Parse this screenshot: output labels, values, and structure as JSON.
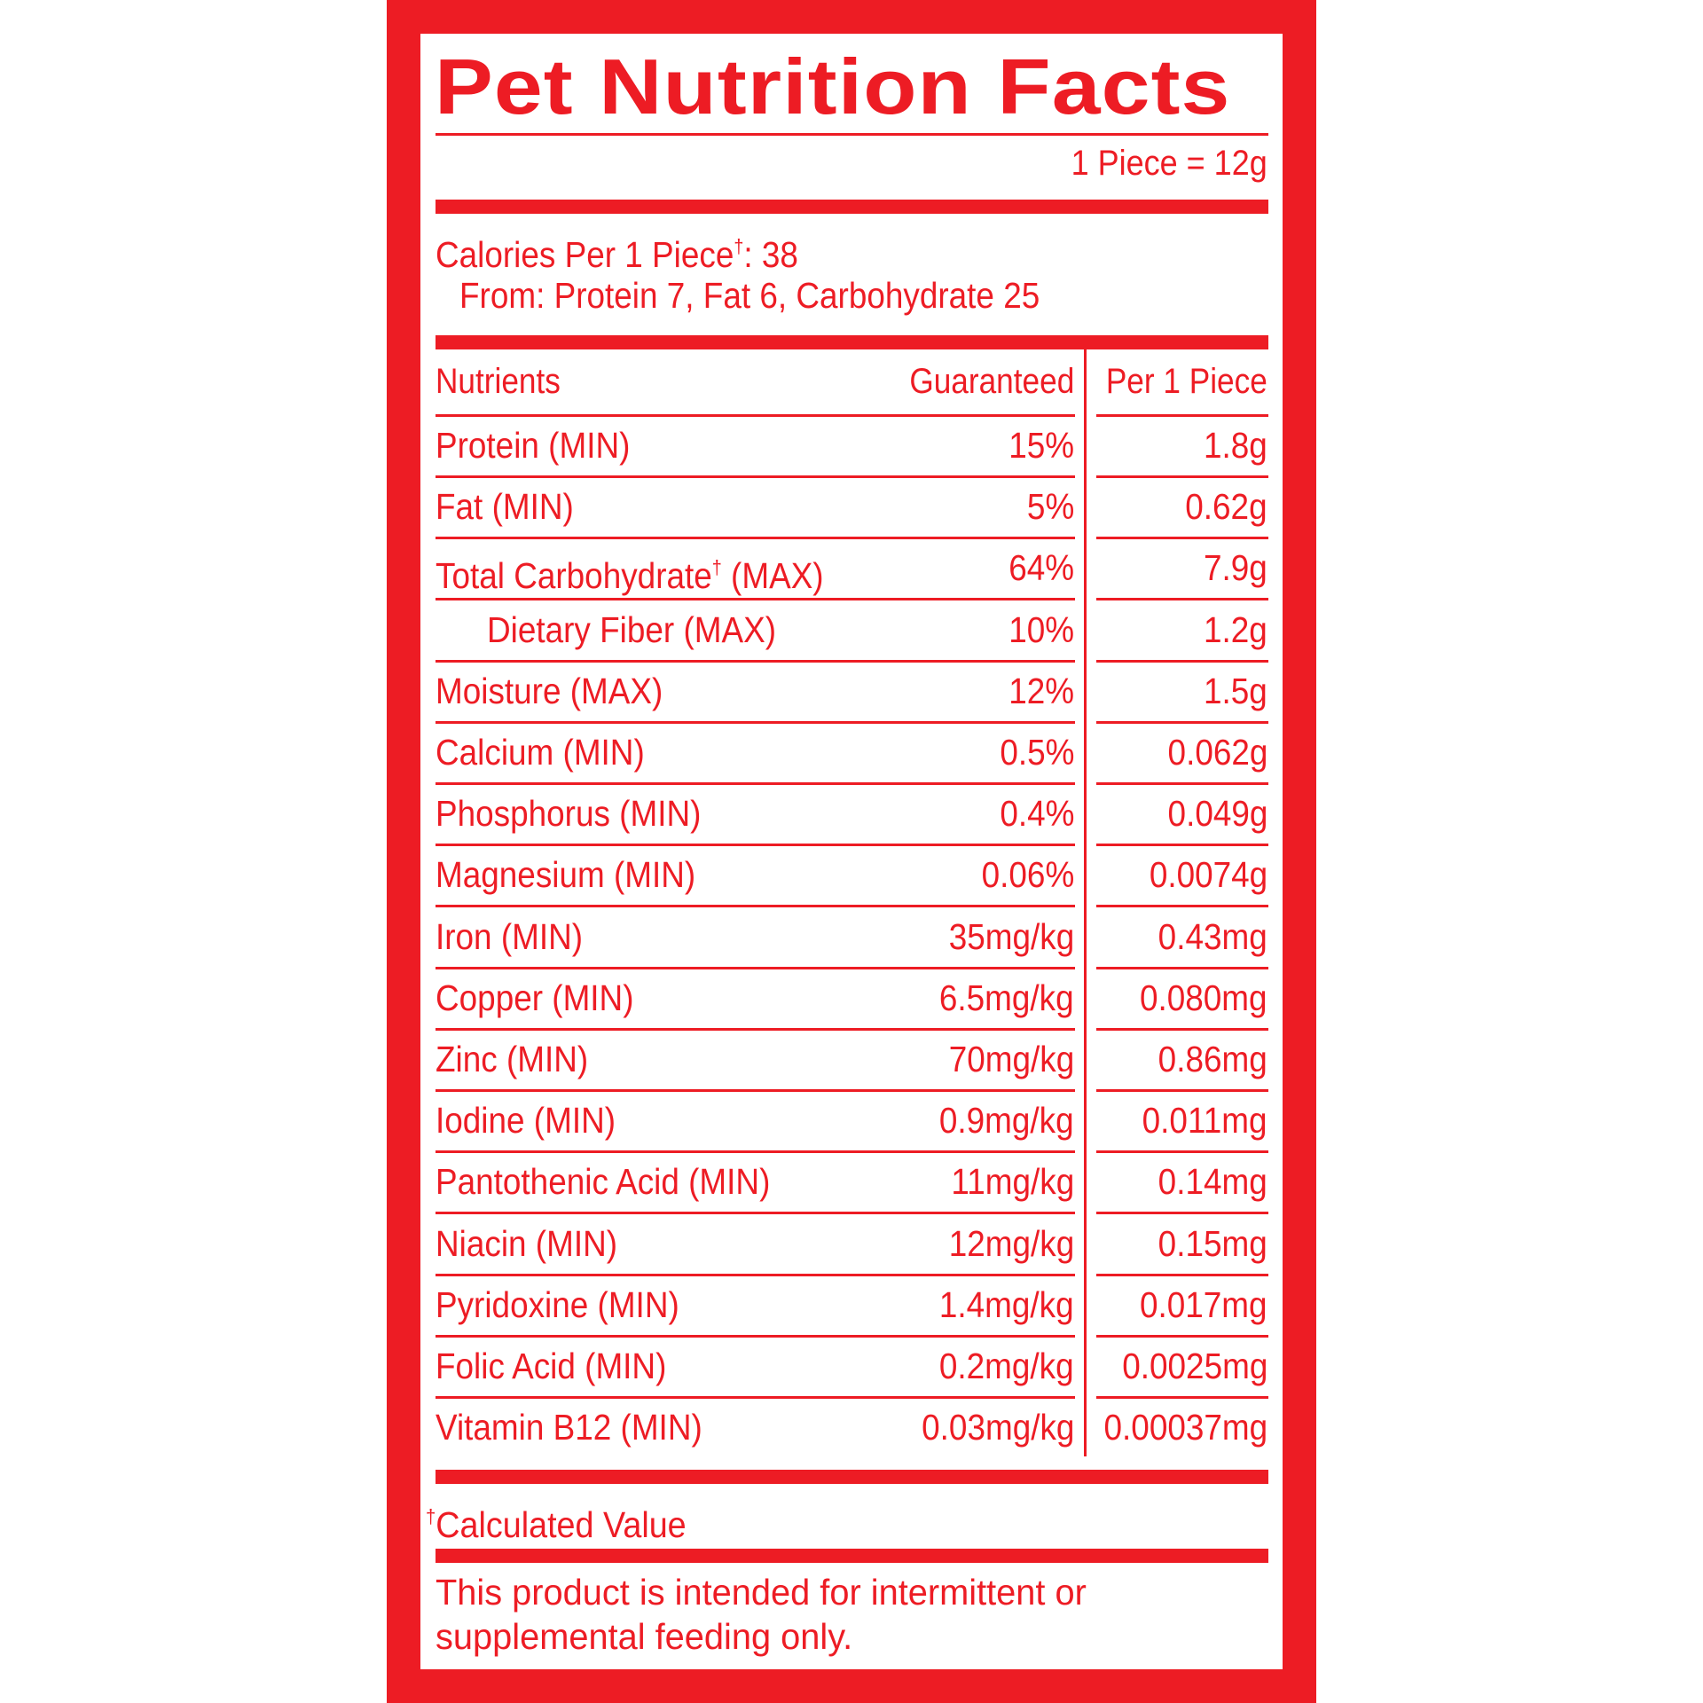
{
  "label": {
    "title": "Pet Nutrition Facts",
    "serving_size": "1 Piece = 12g",
    "calories": {
      "label": "Calories Per 1 Piece",
      "dagger": "†",
      "value": ": 38",
      "from": "From: Protein 7, Fat 6, Carbohydrate 25"
    },
    "table": {
      "headers": {
        "nutrients": "Nutrients",
        "guaranteed": "Guaranteed",
        "per_piece": "Per 1 Piece"
      },
      "rows": [
        {
          "name": "Protein (MIN)",
          "guaranteed": "15%",
          "per_piece": "1.8g"
        },
        {
          "name": "Fat (MIN)",
          "guaranteed": "5%",
          "per_piece": "0.62g"
        },
        {
          "name": "Total Carbohydrate",
          "dagger": "†",
          "suffix": " (MAX)",
          "guaranteed": "64%",
          "per_piece": "7.9g"
        },
        {
          "name": "Dietary Fiber (MAX)",
          "guaranteed": "10%",
          "per_piece": "1.2g",
          "indent": true
        },
        {
          "name": "Moisture (MAX)",
          "guaranteed": "12%",
          "per_piece": "1.5g"
        },
        {
          "name": "Calcium (MIN)",
          "guaranteed": "0.5%",
          "per_piece": "0.062g"
        },
        {
          "name": "Phosphorus (MIN)",
          "guaranteed": "0.4%",
          "per_piece": "0.049g"
        },
        {
          "name": "Magnesium (MIN)",
          "guaranteed": "0.06%",
          "per_piece": "0.0074g"
        },
        {
          "name": "Iron (MIN)",
          "guaranteed": "35mg/kg",
          "per_piece": "0.43mg"
        },
        {
          "name": "Copper (MIN)",
          "guaranteed": "6.5mg/kg",
          "per_piece": "0.080mg"
        },
        {
          "name": "Zinc (MIN)",
          "guaranteed": "70mg/kg",
          "per_piece": "0.86mg"
        },
        {
          "name": "Iodine (MIN)",
          "guaranteed": "0.9mg/kg",
          "per_piece": "0.011mg"
        },
        {
          "name": "Pantothenic Acid (MIN)",
          "guaranteed": "11mg/kg",
          "per_piece": "0.14mg"
        },
        {
          "name": "Niacin (MIN)",
          "guaranteed": "12mg/kg",
          "per_piece": "0.15mg"
        },
        {
          "name": "Pyridoxine (MIN)",
          "guaranteed": "1.4mg/kg",
          "per_piece": "0.017mg"
        },
        {
          "name": "Folic Acid (MIN)",
          "guaranteed": "0.2mg/kg",
          "per_piece": "0.0025mg"
        },
        {
          "name": "Vitamin B12 (MIN)",
          "guaranteed": "0.03mg/kg",
          "per_piece": "0.00037mg"
        }
      ]
    },
    "footnote": {
      "dagger": "†",
      "text": "Calculated Value"
    },
    "note": "This product is intended for intermittent or supplemental feeding only."
  },
  "colors": {
    "brand_red": "#ed1c24",
    "background": "#ffffff"
  }
}
